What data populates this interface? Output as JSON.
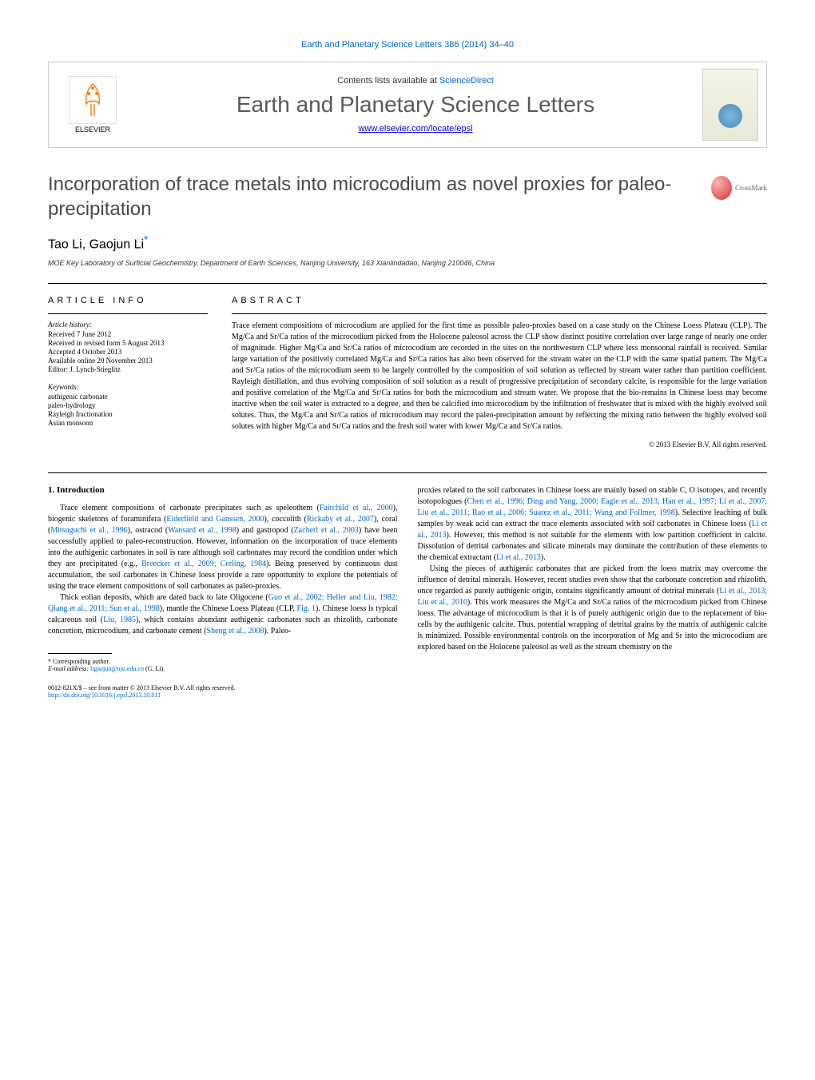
{
  "journal_citation": "Earth and Planetary Science Letters 386 (2014) 34–40",
  "contents_prefix": "Contents lists available at ",
  "contents_link": "ScienceDirect",
  "journal_name": "Earth and Planetary Science Letters",
  "journal_url": "www.elsevier.com/locate/epsl",
  "elsevier_text": "ELSEVIER",
  "crossmark_text": "CrossMark",
  "title": "Incorporation of trace metals into microcodium as novel proxies for paleo-precipitation",
  "authors": "Tao Li, Gaojun Li",
  "corresponding_marker": "*",
  "affiliation": "MOE Key Laboratory of Surficial Geochemistry, Department of Earth Sciences, Nanjing University, 163 Xianlindadao, Nanjing 210046, China",
  "article_info_heading": "ARTICLE INFO",
  "abstract_heading": "ABSTRACT",
  "history": {
    "label": "Article history:",
    "items": [
      "Received 7 June 2012",
      "Received in revised form 5 August 2013",
      "Accepted 4 October 2013",
      "Available online 20 November 2013",
      "Editor: J. Lynch-Stieglitz"
    ]
  },
  "keywords": {
    "label": "Keywords:",
    "items": [
      "authigenic carbonate",
      "paleo-hydrology",
      "Rayleigh fractionation",
      "Asian monsoon"
    ]
  },
  "abstract": "Trace element compositions of microcodium are applied for the first time as possible paleo-proxies based on a case study on the Chinese Loess Plateau (CLP). The Mg/Ca and Sr/Ca ratios of the microcodium picked from the Holocene paleosol across the CLP show distinct positive correlation over large range of nearly one order of magnitude. Higher Mg/Ca and Sr/Ca ratios of microcodium are recorded in the sites on the northwestern CLP where less monsoonal rainfall is received. Similar large variation of the positively correlated Mg/Ca and Sr/Ca ratios has also been observed for the stream water on the CLP with the same spatial pattern. The Mg/Ca and Sr/Ca ratios of the microcodium seem to be largely controlled by the composition of soil solution as reflected by stream water rather than partition coefficient. Rayleigh distillation, and thus evolving composition of soil solution as a result of progressive precipitation of secondary calcite, is responsible for the large variation and positive correlation of the Mg/Ca and Sr/Ca ratios for both the microcodium and stream water. We propose that the bio-remains in Chinese loess may become inactive when the soil water is extracted to a degree, and then be calcified into microcodium by the infiltration of freshwater that is mixed with the highly evolved soil solutes. Thus, the Mg/Ca and Sr/Ca ratios of microcodium may record the paleo-precipitation amount by reflecting the mixing ratio between the highly evolved soil solutes with higher Mg/Ca and Sr/Ca ratios and the fresh soil water with lower Mg/Ca and Sr/Ca ratios.",
  "copyright": "© 2013 Elsevier B.V. All rights reserved.",
  "section1_heading": "1. Introduction",
  "body_left": [
    {
      "text": "Trace element compositions of carbonate precipitates such as speleothem (",
      "link": "Fairchild et al., 2000",
      "after": "), biogenic skeletons of foraminifera ("
    },
    {
      "link": "Elderfield and Ganssen, 2000",
      "after": "), coccolith ("
    },
    {
      "link": "Rickaby et al., 2007",
      "after": "), coral ("
    },
    {
      "link": "Mitsuguchi et al., 1996",
      "after": "), ostracod ("
    },
    {
      "link": "Wansard et al., 1998",
      "after": ") and gastropod ("
    },
    {
      "link": "Zacherl et al., 2003",
      "after": ") have been successfully applied to paleo-reconstruction. However, information on the incorporation of trace elements into the authigenic carbonates in soil is rare although soil carbonates may record the condition under which they are precipitated (e.g., "
    },
    {
      "link": "Breecker et al., 2009; Cerling, 1984",
      "after": "). Being preserved by continuous dust accumulation, the soil carbonates in Chinese loess provide a rare opportunity to explore the potentials of using the trace element compositions of soil carbonates as paleo-proxies."
    }
  ],
  "body_left_p2": [
    {
      "text": "Thick eolian deposits, which are dated back to late Oligocene (",
      "link": "Guo et al., 2002; Heller and Liu, 1982; Qiang et al., 2011; Sun et al., 1998",
      "after": "), mantle the Chinese Loess Plateau (CLP, "
    },
    {
      "link": "Fig. 1",
      "after": "). Chinese loess is typical calcareous soil ("
    },
    {
      "link": "Liu, 1985",
      "after": "), which contains abundant authigenic carbonates such as rhizolith, carbonate concretion, microcodium, and carbonate cement ("
    },
    {
      "link": "Sheng et al., 2008",
      "after": "). Paleo-"
    }
  ],
  "body_right_p1": [
    {
      "text": "proxies related to the soil carbonates in Chinese loess are mainly based on stable C, O isotopes, and recently isotopologues (",
      "link": "Chen et al., 1996; Ding and Yang, 2000; Eagle et al., 2013; Han et al., 1997; Li et al., 2007; Liu et al., 2011; Rao et al., 2006; Suarez et al., 2011; Wang and Follmer, 1998",
      "after": "). Selective leaching of bulk samples by weak acid can extract the trace elements associated with soil carbonates in Chinese loess ("
    },
    {
      "link": "Li et al., 2013",
      "after": "). However, this method is not suitable for the elements with low partition coefficient in calcite. Dissolution of detrital carbonates and silicate minerals may dominate the contribution of these elements to the chemical extractant ("
    },
    {
      "link": "Li et al., 2013",
      "after": ")."
    }
  ],
  "body_right_p2": [
    {
      "text": "Using the pieces of authigenic carbonates that are picked from the loess matrix may overcome the influence of detrital minerals. However, recent studies even show that the carbonate concretion and rhizolith, once regarded as purely authigenic origin, contains significantly amount of detrital minerals (",
      "link": "Li et al., 2013; Liu et al., 2010",
      "after": "). This work measures the Mg/Ca and Sr/Ca ratios of the microcodium picked from Chinese loess. The advantage of microcodium is that it is of purely authigenic origin due to the replacement of bio-cells by the authigenic calcite. Thus, potential wrapping of detrital grains by the matrix of authigenic calcite is minimized. Possible environmental controls on the incorporation of Mg and Sr into the microcodium are explored based on the Holocene paleosol as well as the stream chemistry on the"
    }
  ],
  "corresponding_label": "* Corresponding author.",
  "email_label": "E-mail address:",
  "email": "ligaojun@nju.edu.cn",
  "email_suffix": "(G. Li).",
  "issn": "0012-821X/$ – see front matter © 2013 Elsevier B.V. All rights reserved.",
  "doi": "http://dx.doi.org/10.1016/j.epsl.2013.10.011",
  "colors": {
    "link": "#0066cc",
    "title_gray": "#4a4a4a",
    "text": "#000000"
  }
}
